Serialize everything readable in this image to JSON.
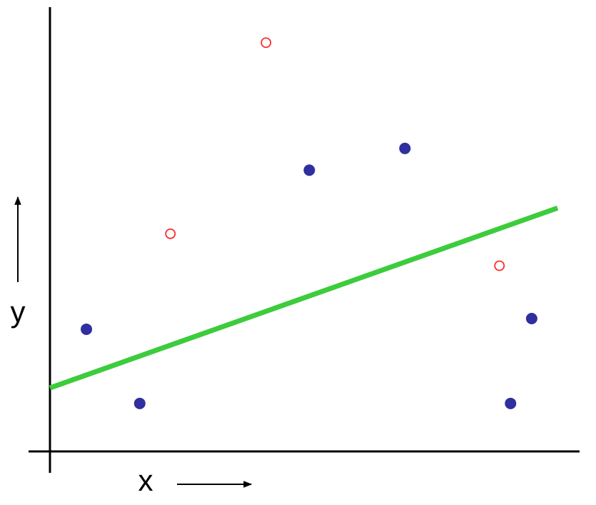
{
  "chart_data": {
    "type": "scatter",
    "x_label": "x",
    "y_label": "y",
    "xlim": [
      0,
      100
    ],
    "ylim": [
      0,
      100
    ],
    "series": [
      {
        "type": "scatter",
        "marker": "filled",
        "color": "#2f2f9f",
        "x": [
          6.9,
          17.0,
          49.1,
          67.2,
          91.2,
          87.2
        ],
        "values": [
          27.5,
          10.8,
          63.3,
          68.2,
          29.9,
          10.8
        ]
      },
      {
        "type": "scatter",
        "marker": "hollow",
        "color": "#ff2a2a",
        "x": [
          22.8,
          40.9,
          85.1
        ],
        "values": [
          49.0,
          92.0,
          41.8
        ]
      },
      {
        "type": "line",
        "color": "#3ccc3c",
        "x": [
          0,
          96.1
        ],
        "values": [
          14.3,
          54.8
        ]
      }
    ]
  }
}
